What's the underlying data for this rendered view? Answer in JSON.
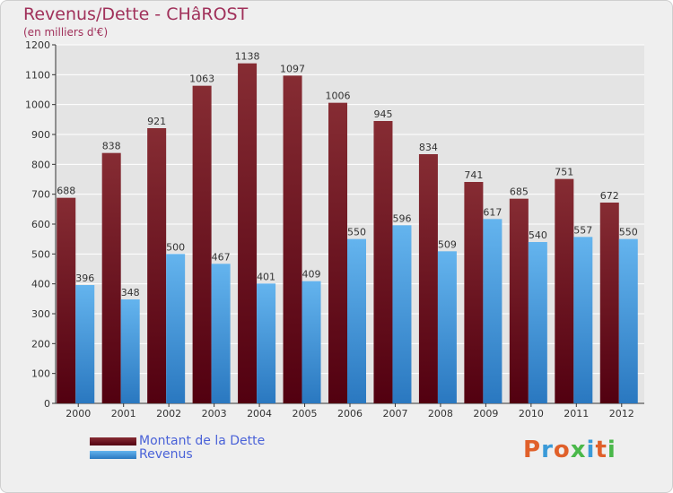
{
  "title": "Revenus/Dette - CHâROST",
  "subtitle": "(en milliers d'€)",
  "brand": {
    "text": "Proxiti",
    "letter_colors": [
      "#e0602a",
      "#3a9ad8",
      "#e0602a",
      "#4ab84a",
      "#3a9ad8",
      "#e0602a",
      "#4ab84a"
    ]
  },
  "colors": {
    "dette_top": "#862c33",
    "dette_bottom": "#520010",
    "revenus_top": "#64b4ee",
    "revenus_bottom": "#2a78c0",
    "grid": "#ffffff",
    "plot_background": "#e4e4e4",
    "title": "#a0305a",
    "legend_text": "#4a62d8"
  },
  "chart_data": {
    "type": "bar",
    "title": "Revenus/Dette - CHâROST",
    "subtitle": "(en milliers d'€)",
    "categories": [
      "2000",
      "2001",
      "2002",
      "2003",
      "2004",
      "2005",
      "2006",
      "2007",
      "2008",
      "2009",
      "2010",
      "2011",
      "2012"
    ],
    "series": [
      {
        "name": "Montant de la Dette",
        "values": [
          688,
          838,
          921,
          1063,
          1138,
          1097,
          1006,
          945,
          834,
          741,
          685,
          751,
          672
        ]
      },
      {
        "name": "Revenus",
        "values": [
          396,
          348,
          500,
          467,
          401,
          409,
          550,
          596,
          509,
          617,
          540,
          557,
          550
        ]
      }
    ],
    "yticks": [
      0,
      100,
      200,
      300,
      400,
      500,
      600,
      700,
      800,
      900,
      1000,
      1100,
      1200
    ],
    "ylim": [
      0,
      1200
    ],
    "grid": true,
    "legend_position": "bottom-left"
  }
}
